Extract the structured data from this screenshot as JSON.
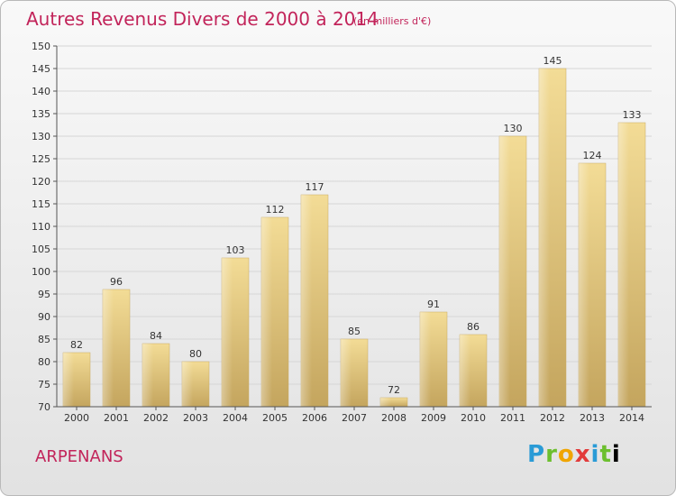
{
  "chart_data": {
    "type": "bar",
    "title": "Autres Revenus Divers de 2000 à 2014",
    "subtitle": "(en milliers d'€)",
    "categories": [
      "2000",
      "2001",
      "2002",
      "2003",
      "2004",
      "2005",
      "2006",
      "2007",
      "2008",
      "2009",
      "2010",
      "2011",
      "2012",
      "2013",
      "2014"
    ],
    "values": [
      82,
      96,
      84,
      80,
      103,
      112,
      117,
      85,
      72,
      91,
      86,
      130,
      145,
      124,
      133
    ],
    "ylim": [
      70,
      150
    ],
    "yticks": [
      70,
      75,
      80,
      85,
      90,
      95,
      100,
      105,
      110,
      115,
      120,
      125,
      130,
      135,
      140,
      145,
      150
    ],
    "grid": true,
    "bar_color": "#e8cc80"
  },
  "commune": "ARPENANS",
  "logo": "Proxiti"
}
